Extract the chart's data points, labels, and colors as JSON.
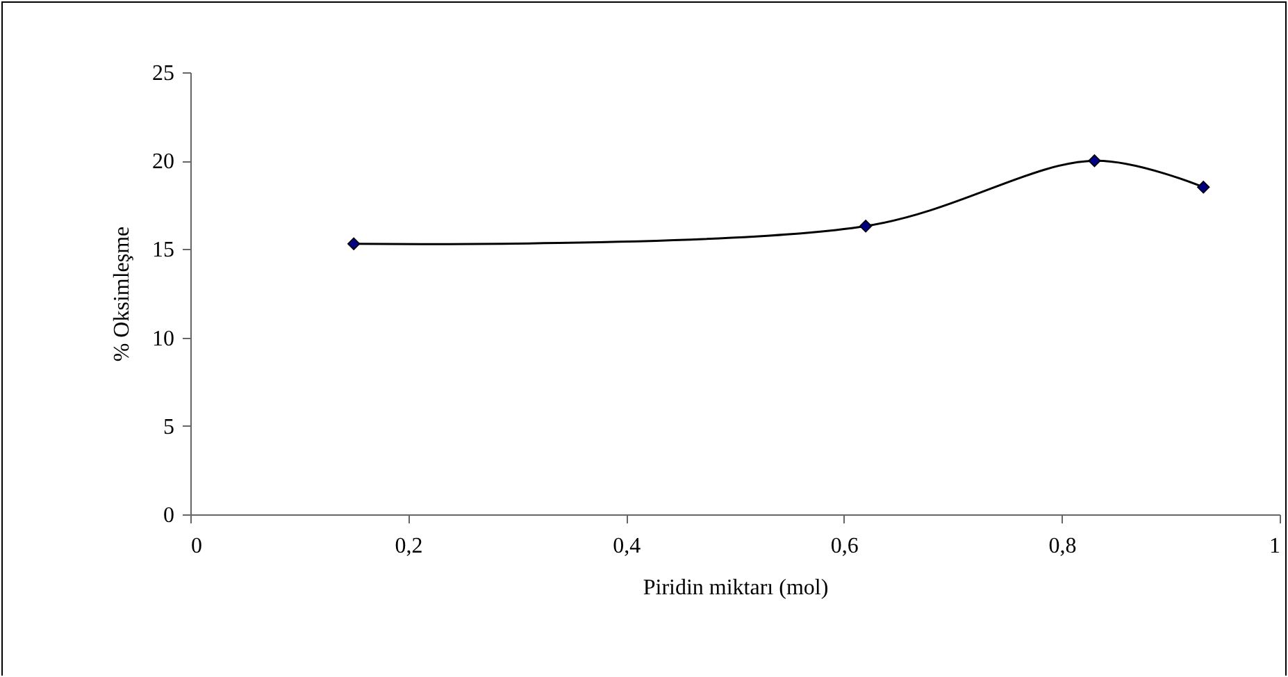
{
  "chart_data": {
    "type": "line",
    "xlabel": "Piridin miktarı (mol)",
    "ylabel": "% Oksimleşme",
    "x": [
      0.15,
      0.62,
      0.83,
      0.93
    ],
    "series": [
      {
        "color": "#000000",
        "values": [
          15.3,
          16.3,
          20,
          18.5
        ]
      }
    ],
    "colors": [
      "#000080",
      "#000080",
      "#000080",
      "#000080"
    ],
    "xlim": [
      0,
      1
    ],
    "xticks": [
      0,
      {
        "value": 0.2,
        "label": "0,2"
      },
      {
        "value": 0.4,
        "label": "0,4"
      },
      {
        "value": 0.6,
        "label": "0,6"
      },
      {
        "value": 0.8,
        "label": "0,8"
      },
      1
    ],
    "ylim": [
      0,
      25
    ],
    "yticks": [
      0,
      5,
      10,
      15,
      20,
      25
    ],
    "grid": false,
    "marker": "diamond",
    "line_style": "solid"
  }
}
